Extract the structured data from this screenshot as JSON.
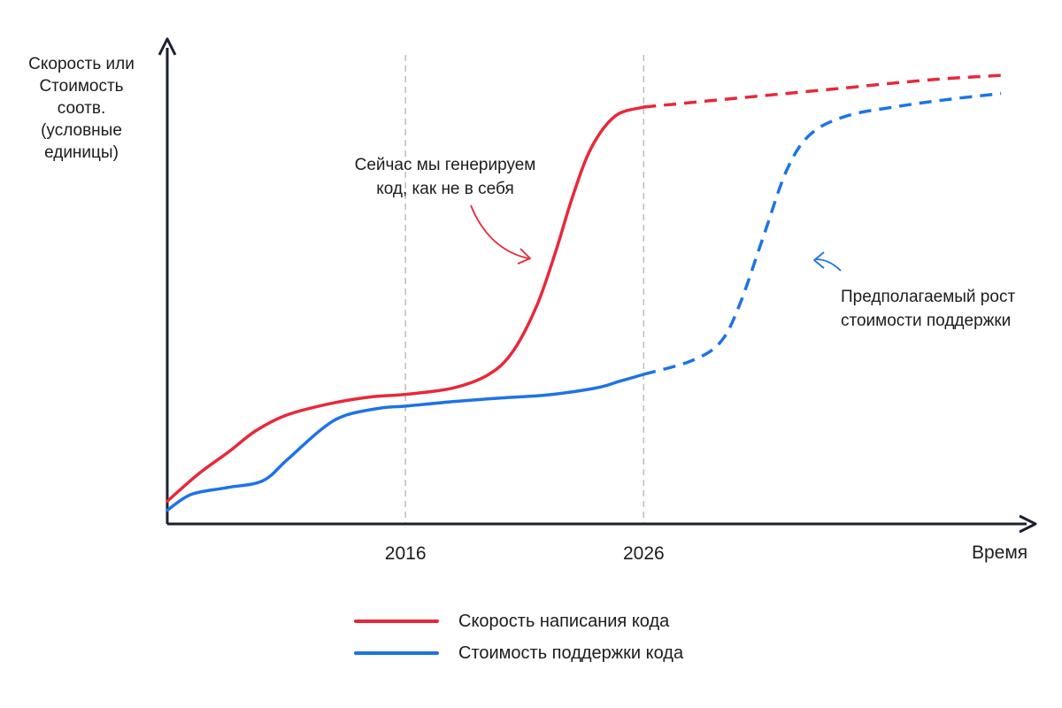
{
  "chart_data": {
    "type": "line",
    "ylabel": [
      "Скорость или",
      "Стоимость",
      "соотв.",
      "(условные",
      "единицы)"
    ],
    "xlabel": "Время",
    "xlim": [
      2006,
      2042
    ],
    "ylim": [
      0,
      100
    ],
    "x_ticks": [
      {
        "value": 2016,
        "label": "2016"
      },
      {
        "value": 2026,
        "label": "2026"
      }
    ],
    "vertical_gridlines": [
      2016,
      2026
    ],
    "series": [
      {
        "name": "Скорость написания кода",
        "color": "#e8283a",
        "points": [
          [
            2006,
            5
          ],
          [
            2007.3,
            11
          ],
          [
            2008.6,
            16
          ],
          [
            2009.7,
            20.5
          ],
          [
            2011,
            24
          ],
          [
            2012.8,
            26.5
          ],
          [
            2014.5,
            28
          ],
          [
            2016,
            28.6
          ],
          [
            2018,
            30
          ],
          [
            2019.5,
            33
          ],
          [
            2020.5,
            38
          ],
          [
            2021.5,
            48
          ],
          [
            2022.3,
            60
          ],
          [
            2023,
            72
          ],
          [
            2023.8,
            83
          ],
          [
            2024.8,
            90
          ],
          [
            2026,
            92
          ]
        ],
        "projected": [
          [
            2026,
            92
          ],
          [
            2030,
            94
          ],
          [
            2034,
            96
          ],
          [
            2038,
            98
          ],
          [
            2041,
            99
          ]
        ]
      },
      {
        "name": "Стоимость поддержки кода",
        "color": "#1d73e8",
        "points": [
          [
            2006,
            3
          ],
          [
            2007,
            6.5
          ],
          [
            2008.5,
            8
          ],
          [
            2010,
            9.5
          ],
          [
            2011,
            14
          ],
          [
            2012.5,
            21
          ],
          [
            2013.5,
            24
          ],
          [
            2015,
            25.6
          ],
          [
            2016,
            26
          ],
          [
            2018,
            27
          ],
          [
            2020,
            27.8
          ],
          [
            2022,
            28.5
          ],
          [
            2024,
            30
          ],
          [
            2025,
            31.5
          ],
          [
            2026,
            33
          ]
        ],
        "projected": [
          [
            2026,
            33
          ],
          [
            2028,
            36
          ],
          [
            2029.2,
            40
          ],
          [
            2030,
            48
          ],
          [
            2031,
            63
          ],
          [
            2032,
            78
          ],
          [
            2033,
            86
          ],
          [
            2034.5,
            90
          ],
          [
            2036.5,
            92
          ],
          [
            2038.5,
            93.5
          ],
          [
            2041,
            95
          ]
        ]
      }
    ],
    "annotations": [
      {
        "lines": [
          "Сейчас мы генерируем",
          "код, как не в себя"
        ],
        "series": 0,
        "color": "#e8283a"
      },
      {
        "lines": [
          "Предполагаемый рост",
          "стоимости поддержки"
        ],
        "series": 1,
        "color": "#1d73e8"
      }
    ],
    "legend": {
      "position": "bottom-center"
    }
  }
}
